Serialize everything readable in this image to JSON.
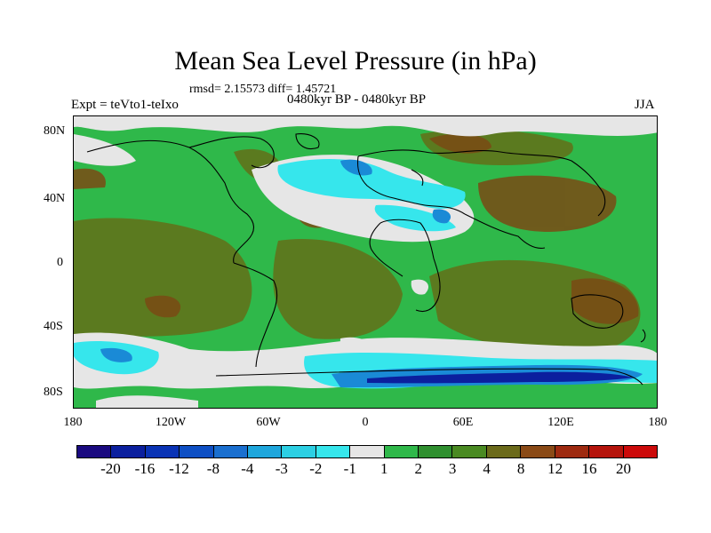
{
  "title": "Mean Sea Level Pressure (in hPa)",
  "stats": "rmsd= 2.15573 diff= 1.45721",
  "experiment": "Expt = teVto1-teIxo",
  "period": "0480kyr BP - 0480kyr BP",
  "season": "JJA",
  "lat_labels": [
    "80N",
    "40N",
    "0",
    "40S",
    "80S"
  ],
  "lon_labels": [
    "180",
    "120W",
    "60W",
    "0",
    "60E",
    "120E",
    "180"
  ],
  "colorbar": {
    "labels": [
      "-20",
      "-16",
      "-12",
      "-8",
      "-4",
      "-3",
      "-2",
      "-1",
      "1",
      "2",
      "3",
      "4",
      "8",
      "12",
      "16",
      "20"
    ],
    "colors": [
      "#1a0a80",
      "#0b1f9e",
      "#0a33b5",
      "#0e4fc4",
      "#1a6fcf",
      "#1ea6dc",
      "#2ccfe3",
      "#36e6ec",
      "#e6e6e6",
      "#2fb84a",
      "#2f8f2f",
      "#4a8a22",
      "#6b6a1a",
      "#8a4a16",
      "#9e2a10",
      "#b5140c",
      "#cc0a0a"
    ]
  },
  "colors": {
    "green": "#2fb84a",
    "olive": "#5b7a1f",
    "brown": "#7a4a14",
    "white": "#e6e6e6",
    "cyan": "#36e6ec",
    "blue": "#1a8ad6",
    "navy": "#0b1f9e"
  }
}
